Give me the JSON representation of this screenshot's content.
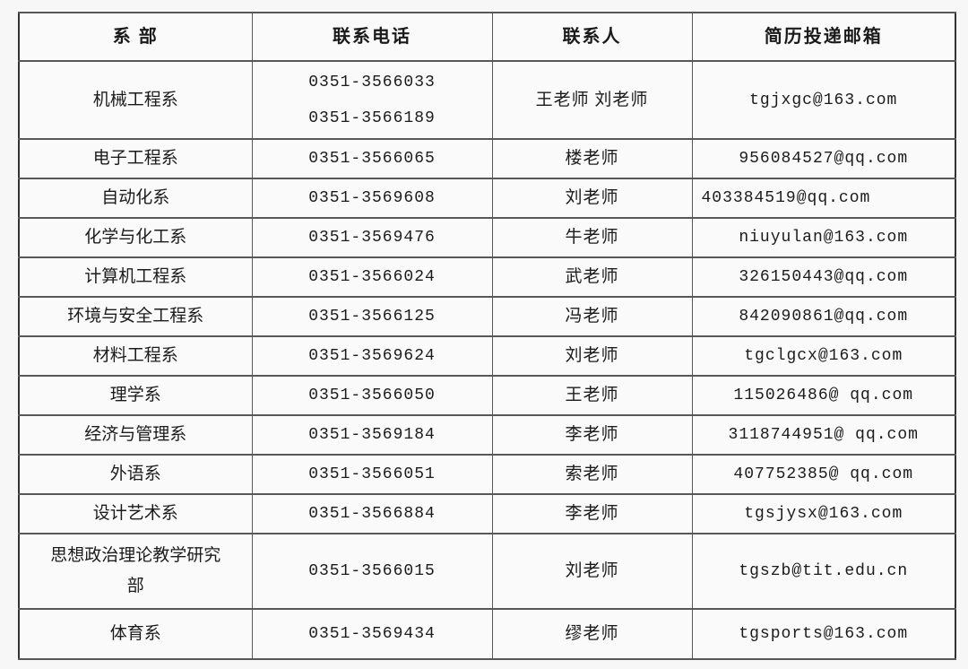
{
  "page": {
    "background_color": "#f7f7f7",
    "cell_background_color": "#fafafa",
    "border_color": "#585858",
    "text_color": "#1b1b1b"
  },
  "table": {
    "columns": [
      {
        "key": "dept",
        "label": "系 部"
      },
      {
        "key": "phones",
        "label": "联系电话"
      },
      {
        "key": "contact",
        "label": "联系人"
      },
      {
        "key": "email",
        "label": "简历投递邮箱"
      }
    ],
    "rows": [
      {
        "dept": "机械工程系",
        "phones": [
          "0351-3566033",
          "0351-3566189"
        ],
        "contact": "王老师 刘老师",
        "email": "tgjxgc@163.com"
      },
      {
        "dept": "电子工程系",
        "phones": [
          "0351-3566065"
        ],
        "contact": "楼老师",
        "email": "956084527@qq.com"
      },
      {
        "dept": "自动化系",
        "phones": [
          "0351-3569608"
        ],
        "contact": "刘老师",
        "email": "403384519@qq.com",
        "email_align": "left"
      },
      {
        "dept": "化学与化工系",
        "phones": [
          "0351-3569476"
        ],
        "contact": "牛老师",
        "email": "niuyulan@163.com"
      },
      {
        "dept": "计算机工程系",
        "phones": [
          "0351-3566024"
        ],
        "contact": "武老师",
        "email": "326150443@qq.com"
      },
      {
        "dept": "环境与安全工程系",
        "phones": [
          "0351-3566125"
        ],
        "contact": "冯老师",
        "email": "842090861@qq.com"
      },
      {
        "dept": "材料工程系",
        "phones": [
          "0351-3569624"
        ],
        "contact": "刘老师",
        "email": "tgclgcx@163.com"
      },
      {
        "dept": "理学系",
        "phones": [
          "0351-3566050"
        ],
        "contact": "王老师",
        "email": "115026486@ qq.com"
      },
      {
        "dept": "经济与管理系",
        "phones": [
          "0351-3569184"
        ],
        "contact": "李老师",
        "email": "3118744951@ qq.com"
      },
      {
        "dept": "外语系",
        "phones": [
          "0351-3566051"
        ],
        "contact": "索老师",
        "email": "407752385@ qq.com"
      },
      {
        "dept": "设计艺术系",
        "phones": [
          "0351-3566884"
        ],
        "contact": "李老师",
        "email": "tgsjysx@163.com"
      },
      {
        "dept": "思想政治理论教学研究部",
        "phones": [
          "0351-3566015"
        ],
        "contact": "刘老师",
        "email": "tgszb@tit.edu.cn"
      },
      {
        "dept": "体育系",
        "phones": [
          "0351-3569434"
        ],
        "contact": "缪老师",
        "email": "tgsports@163.com"
      }
    ]
  }
}
